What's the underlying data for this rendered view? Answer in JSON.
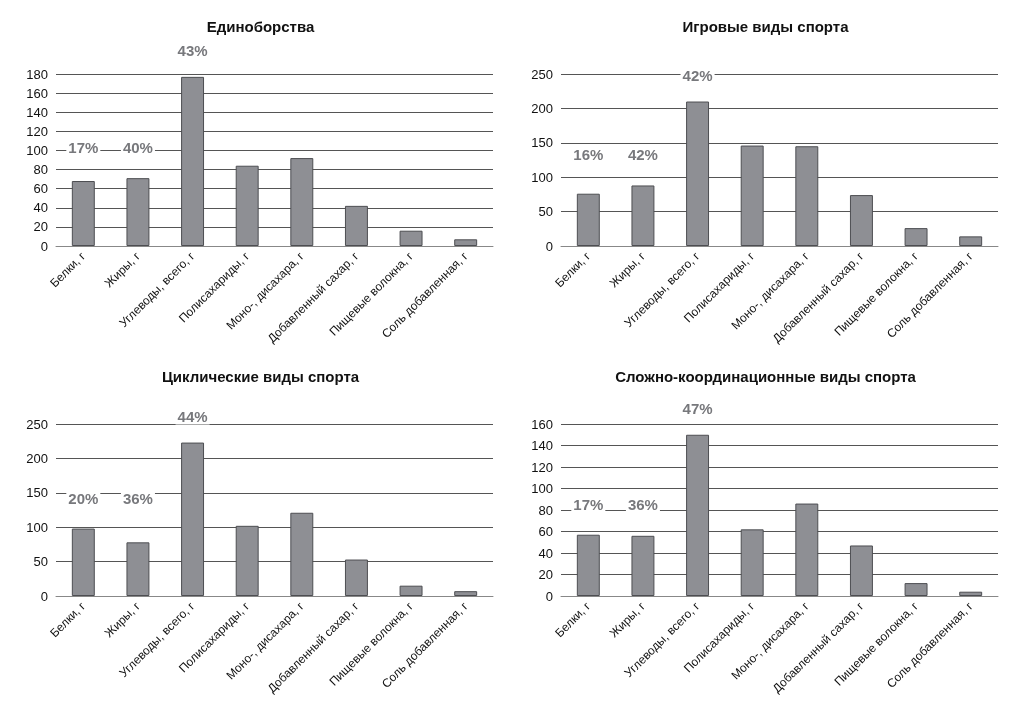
{
  "chart_data": [
    {
      "type": "bar",
      "title": "Единоборства",
      "categories": [
        "Белки, г",
        "Жиры, г",
        "Углеводы, всего, г",
        "Полисахариды, г",
        "Моно-, дисахара, г",
        "Добавленный сахар, г",
        "Пищевые волокна, г",
        "Соль добавленная, г"
      ],
      "values": [
        68,
        71,
        177,
        84,
        92,
        42,
        16,
        7
      ],
      "color": "#8e8f94",
      "ylim": [
        0,
        180
      ],
      "yticks": [
        0,
        20,
        40,
        60,
        80,
        100,
        120,
        140,
        160,
        180
      ],
      "grid": "y",
      "annotations": [
        "17%",
        "40%",
        "43%"
      ]
    },
    {
      "type": "bar",
      "title": "Игровые виды спорта",
      "categories": [
        "Белки, г",
        "Жиры, г",
        "Углеводы, всего, г",
        "Полисахариды, г",
        "Моно-, дисахара, г",
        "Добавленный сахар, г",
        "Пищевые волокна, г",
        "Соль добавленная, г"
      ],
      "values": [
        76,
        88,
        210,
        146,
        145,
        74,
        26,
        14
      ],
      "color": "#8e8f94",
      "ylim": [
        0,
        250
      ],
      "yticks": [
        0,
        50,
        100,
        150,
        200,
        250
      ],
      "grid": "y",
      "annotations": [
        "16%",
        "42%",
        "42%"
      ]
    },
    {
      "type": "bar",
      "title": "Циклические виды спорта",
      "categories": [
        "Белки, г",
        "Жиры, г",
        "Углеводы, всего, г",
        "Полисахариды, г",
        "Моно-, дисахара, г",
        "Добавленный сахар, г",
        "Пищевые волокна, г",
        "Соль добавленная, г"
      ],
      "values": [
        98,
        78,
        223,
        102,
        121,
        53,
        15,
        7
      ],
      "color": "#8e8f94",
      "ylim": [
        0,
        250
      ],
      "yticks": [
        0,
        50,
        100,
        150,
        200,
        250
      ],
      "grid": "y",
      "annotations": [
        "20%",
        "36%",
        "44%"
      ]
    },
    {
      "type": "bar",
      "title": "Сложно-координационные виды спорта",
      "categories": [
        "Белки, г",
        "Жиры, г",
        "Углеводы, всего, г",
        "Полисахариды, г",
        "Моно-, дисахара, г",
        "Добавленный сахар, г",
        "Пищевые волокна, г",
        "Соль добавленная, г"
      ],
      "values": [
        57,
        56,
        150,
        62,
        86,
        47,
        12,
        4
      ],
      "color": "#8e8f94",
      "ylim": [
        0,
        160
      ],
      "yticks": [
        0,
        20,
        40,
        60,
        80,
        100,
        120,
        140,
        160
      ],
      "grid": "y",
      "annotations": [
        "17%",
        "36%",
        "47%"
      ]
    }
  ]
}
